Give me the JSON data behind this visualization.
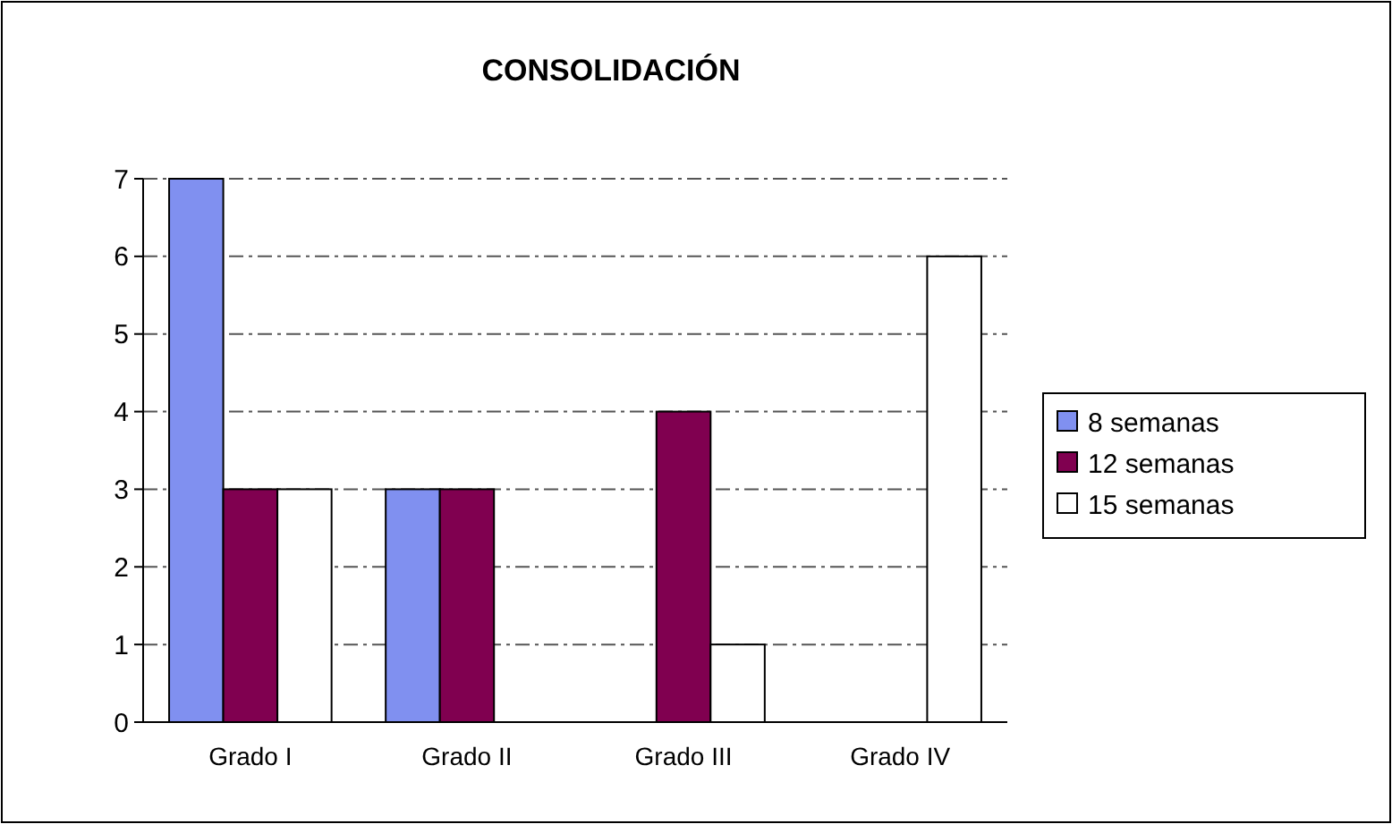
{
  "chart_data": {
    "type": "bar",
    "title": "CONSOLIDACIÓN",
    "categories": [
      "Grado I",
      "Grado II",
      "Grado III",
      "Grado IV"
    ],
    "series": [
      {
        "name": "8 semanas",
        "color": "#8090f0",
        "values": [
          7,
          3,
          0,
          0
        ]
      },
      {
        "name": "12 semanas",
        "color": "#800050",
        "values": [
          3,
          3,
          4,
          0
        ]
      },
      {
        "name": "15 semanas",
        "color": "#ffffff",
        "values": [
          3,
          0,
          1,
          6
        ]
      }
    ],
    "ylim": [
      0,
      7
    ],
    "yticks": [
      0,
      1,
      2,
      3,
      4,
      5,
      6,
      7
    ],
    "grid": "y",
    "legend": "right"
  }
}
